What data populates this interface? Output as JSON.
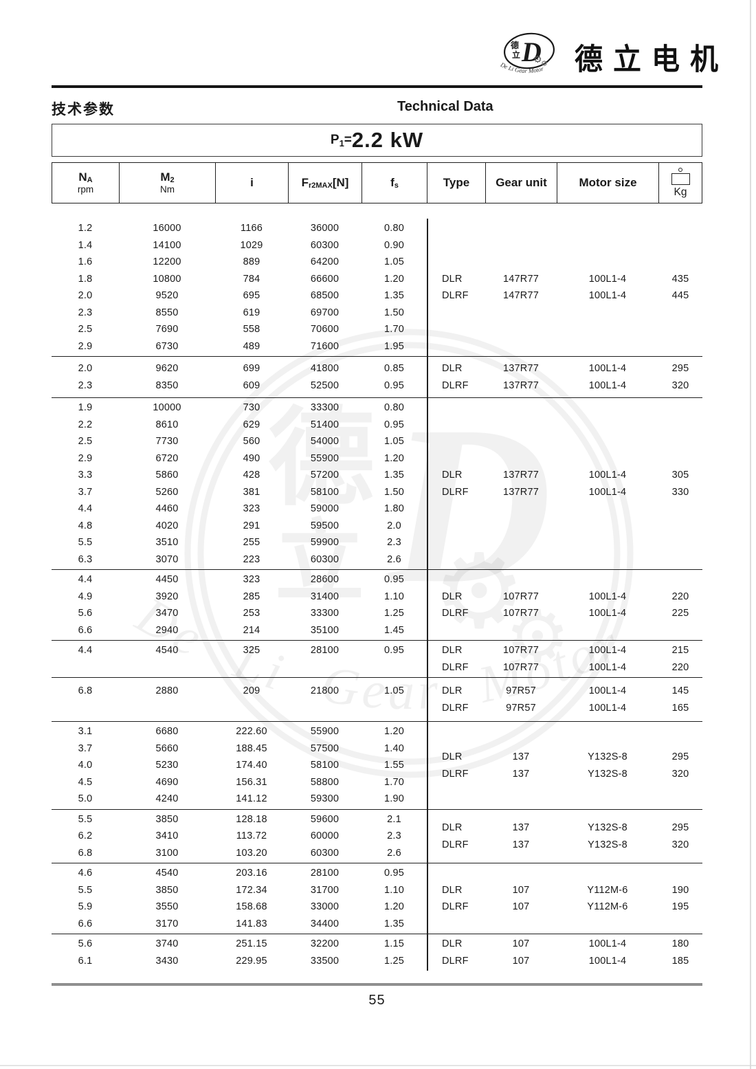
{
  "brand": {
    "name_cn": "德立电机",
    "logo": {
      "cn_top": "德",
      "cn_bottom": "立",
      "d": "D",
      "arc_text": "De Li Gear Motor"
    }
  },
  "icons": {
    "gear": "⚙"
  },
  "header": {
    "title_cn": "技术参数",
    "title_en": "Technical Data"
  },
  "power": {
    "prefix": "P",
    "sub": "1",
    "eq": "=",
    "value": "2.2 kW"
  },
  "thead": {
    "na": {
      "main": "N",
      "sub": "A",
      "unit": "rpm"
    },
    "m2": {
      "main": "M",
      "sub": "2",
      "unit": "Nm"
    },
    "i": {
      "main": "i"
    },
    "fr": {
      "main": "F",
      "sub": "r2MAX",
      "bracket": "[N]"
    },
    "fs": {
      "main": "f",
      "sub": "s"
    },
    "type": "Type",
    "gear_unit": "Gear unit",
    "motor_size": "Motor size",
    "kg": "Kg"
  },
  "table": {
    "groups": [
      {
        "rows": [
          [
            "1.2",
            "16000",
            "1166",
            "36000",
            "0.80"
          ],
          [
            "1.4",
            "14100",
            "1029",
            "60300",
            "0.90"
          ],
          [
            "1.6",
            "12200",
            "889",
            "64200",
            "1.05"
          ],
          [
            "1.8",
            "10800",
            "784",
            "66600",
            "1.20"
          ],
          [
            "2.0",
            "9520",
            "695",
            "68500",
            "1.35"
          ],
          [
            "2.3",
            "8550",
            "619",
            "69700",
            "1.50"
          ],
          [
            "2.5",
            "7690",
            "558",
            "70600",
            "1.70"
          ],
          [
            "2.9",
            "6730",
            "489",
            "71600",
            "1.95"
          ]
        ],
        "types": [
          [
            "DLR",
            "147R77",
            "100L1-4",
            "435"
          ],
          [
            "DLRF",
            "147R77",
            "100L1-4",
            "445"
          ]
        ]
      },
      {
        "rows": [
          [
            "2.0",
            "9620",
            "699",
            "41800",
            "0.85"
          ],
          [
            "2.3",
            "8350",
            "609",
            "52500",
            "0.95"
          ]
        ],
        "types": [
          [
            "DLR",
            "137R77",
            "100L1-4",
            "295"
          ],
          [
            "DLRF",
            "137R77",
            "100L1-4",
            "320"
          ]
        ]
      },
      {
        "rows": [
          [
            "1.9",
            "10000",
            "730",
            "33300",
            "0.80"
          ],
          [
            "2.2",
            "8610",
            "629",
            "51400",
            "0.95"
          ],
          [
            "2.5",
            "7730",
            "560",
            "54000",
            "1.05"
          ],
          [
            "2.9",
            "6720",
            "490",
            "55900",
            "1.20"
          ],
          [
            "3.3",
            "5860",
            "428",
            "57200",
            "1.35"
          ],
          [
            "3.7",
            "5260",
            "381",
            "58100",
            "1.50"
          ],
          [
            "4.4",
            "4460",
            "323",
            "59000",
            "1.80"
          ],
          [
            "4.8",
            "4020",
            "291",
            "59500",
            "2.0"
          ],
          [
            "5.5",
            "3510",
            "255",
            "59900",
            "2.3"
          ],
          [
            "6.3",
            "3070",
            "223",
            "60300",
            "2.6"
          ]
        ],
        "types": [
          [
            "DLR",
            "137R77",
            "100L1-4",
            "305"
          ],
          [
            "DLRF",
            "137R77",
            "100L1-4",
            "330"
          ]
        ]
      },
      {
        "rows": [
          [
            "4.4",
            "4450",
            "323",
            "28600",
            "0.95"
          ],
          [
            "4.9",
            "3920",
            "285",
            "31400",
            "1.10"
          ],
          [
            "5.6",
            "3470",
            "253",
            "33300",
            "1.25"
          ],
          [
            "6.6",
            "2940",
            "214",
            "35100",
            "1.45"
          ]
        ],
        "types": [
          [
            "DLR",
            "107R77",
            "100L1-4",
            "220"
          ],
          [
            "DLRF",
            "107R77",
            "100L1-4",
            "225"
          ]
        ]
      },
      {
        "rows": [
          [
            "4.4",
            "4540",
            "325",
            "28100",
            "0.95"
          ]
        ],
        "types": [
          [
            "DLR",
            "107R77",
            "100L1-4",
            "215"
          ],
          [
            "DLRF",
            "107R77",
            "100L1-4",
            "220"
          ]
        ]
      },
      {
        "rows": [
          [
            "6.8",
            "2880",
            "209",
            "21800",
            "1.05"
          ]
        ],
        "types": [
          [
            "DLR",
            "97R57",
            "100L1-4",
            "145"
          ],
          [
            "DLRF",
            "97R57",
            "100L1-4",
            "165"
          ]
        ]
      },
      {
        "rows": [
          [
            "3.1",
            "6680",
            "222.60",
            "55900",
            "1.20"
          ],
          [
            "3.7",
            "5660",
            "188.45",
            "57500",
            "1.40"
          ],
          [
            "4.0",
            "5230",
            "174.40",
            "58100",
            "1.55"
          ],
          [
            "4.5",
            "4690",
            "156.31",
            "58800",
            "1.70"
          ],
          [
            "5.0",
            "4240",
            "141.12",
            "59300",
            "1.90"
          ]
        ],
        "types": [
          [
            "DLR",
            "137",
            "Y132S-8",
            "295"
          ],
          [
            "DLRF",
            "137",
            "Y132S-8",
            "320"
          ]
        ]
      },
      {
        "rows": [
          [
            "5.5",
            "3850",
            "128.18",
            "59600",
            "2.1"
          ],
          [
            "6.2",
            "3410",
            "113.72",
            "60000",
            "2.3"
          ],
          [
            "6.8",
            "3100",
            "103.20",
            "60300",
            "2.6"
          ]
        ],
        "types": [
          [
            "DLR",
            "137",
            "Y132S-8",
            "295"
          ],
          [
            "DLRF",
            "137",
            "Y132S-8",
            "320"
          ]
        ]
      },
      {
        "rows": [
          [
            "4.6",
            "4540",
            "203.16",
            "28100",
            "0.95"
          ],
          [
            "5.5",
            "3850",
            "172.34",
            "31700",
            "1.10"
          ],
          [
            "5.9",
            "3550",
            "158.68",
            "33000",
            "1.20"
          ],
          [
            "6.6",
            "3170",
            "141.83",
            "34400",
            "1.35"
          ]
        ],
        "types": [
          [
            "DLR",
            "107",
            "Y112M-6",
            "190"
          ],
          [
            "DLRF",
            "107",
            "Y112M-6",
            "195"
          ]
        ]
      },
      {
        "rows": [
          [
            "5.6",
            "3740",
            "251.15",
            "32200",
            "1.15"
          ],
          [
            "6.1",
            "3430",
            "229.95",
            "33500",
            "1.25"
          ]
        ],
        "types": [
          [
            "DLR",
            "107",
            "100L1-4",
            "180"
          ],
          [
            "DLRF",
            "107",
            "100L1-4",
            "185"
          ]
        ]
      }
    ]
  },
  "footer": {
    "page_number": "55"
  }
}
